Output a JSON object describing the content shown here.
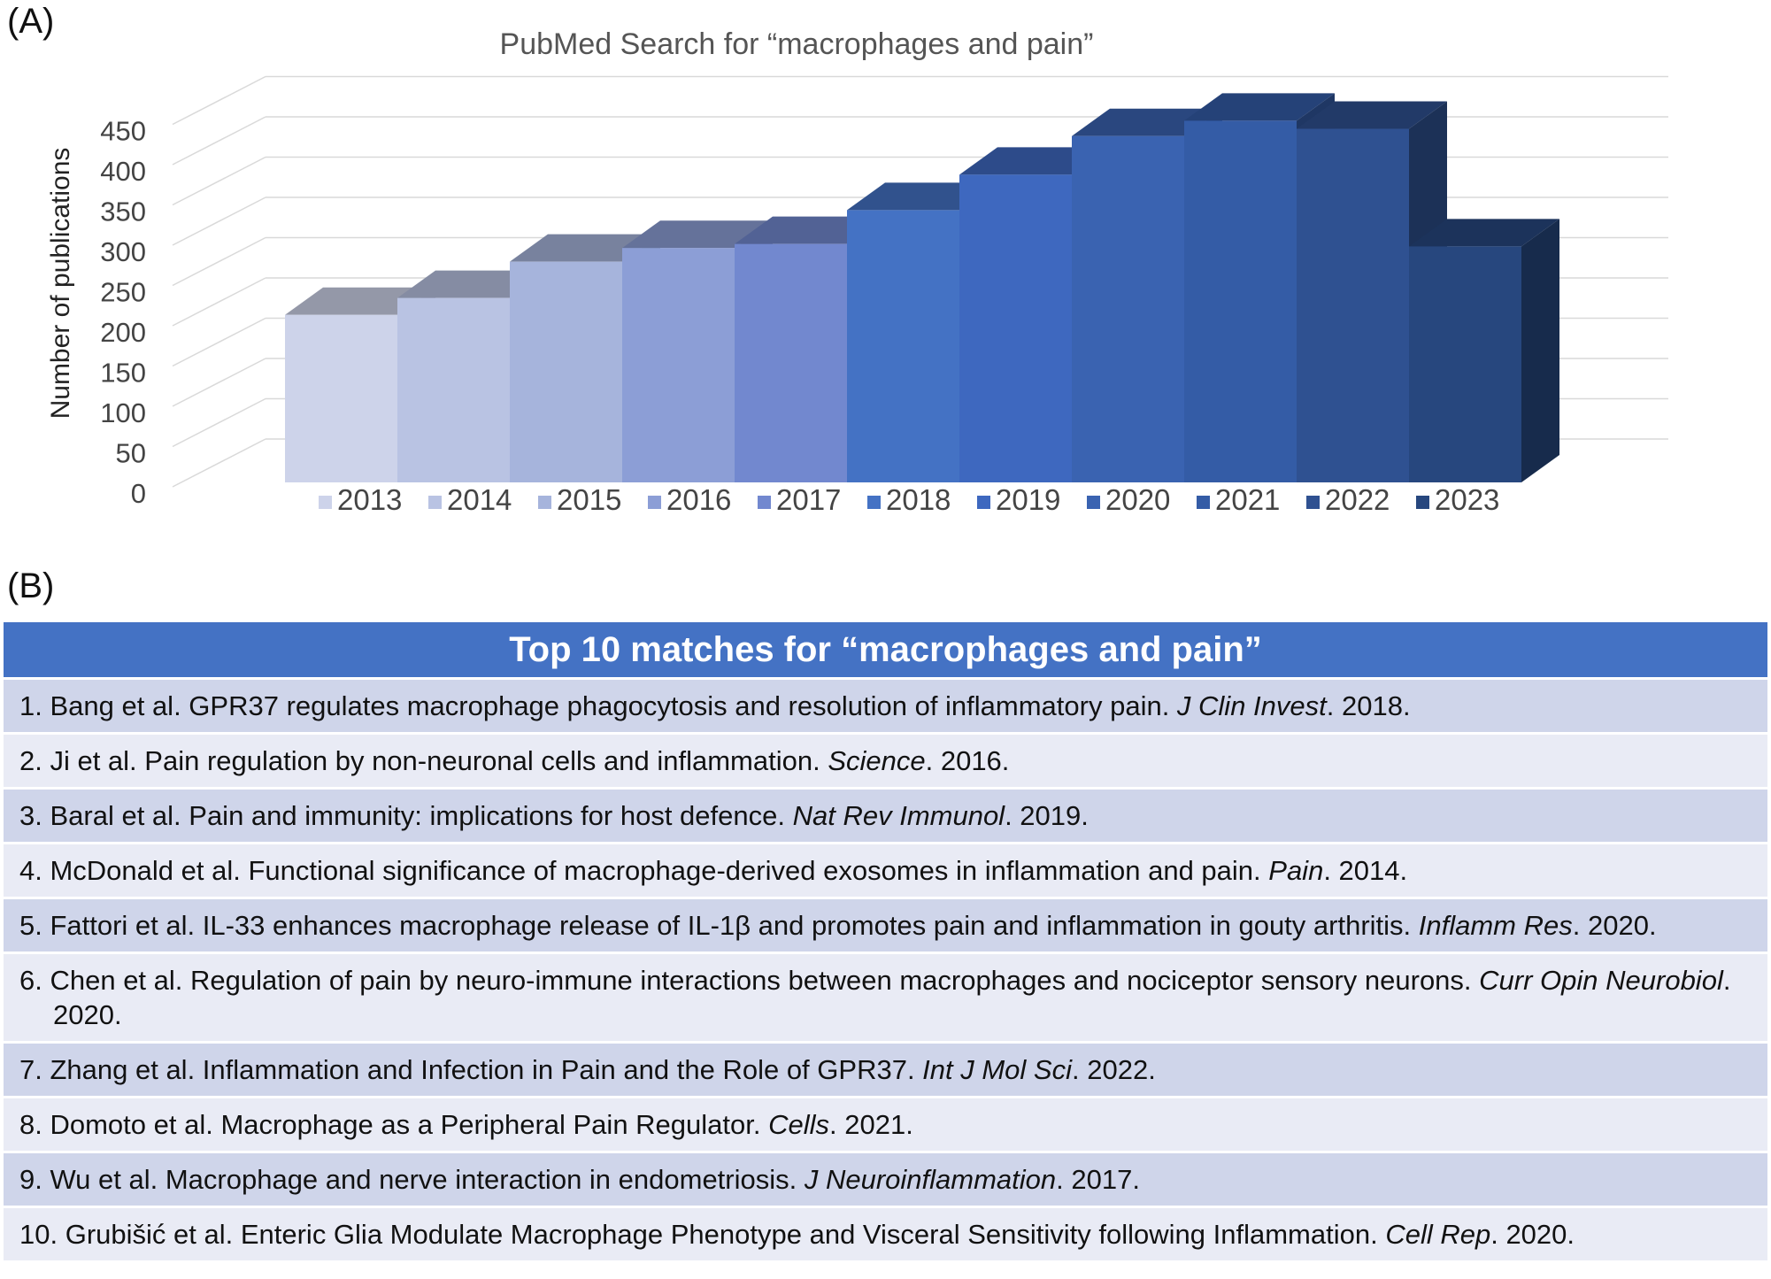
{
  "panel_a_label": "(A)",
  "panel_b_label": "(B)",
  "chart_data": {
    "type": "bar",
    "title": "PubMed Search for “macrophages and pain”",
    "xlabel": "",
    "ylabel": "Number of publications",
    "ylim": [
      0,
      450
    ],
    "yticks": [
      0,
      50,
      100,
      150,
      200,
      250,
      300,
      350,
      400,
      450
    ],
    "grid": true,
    "legend_position": "bottom",
    "categories": [
      "2013",
      "2014",
      "2015",
      "2016",
      "2017",
      "2018",
      "2019",
      "2020",
      "2021",
      "2022",
      "2023"
    ],
    "values": [
      208,
      229,
      274,
      291,
      296,
      338,
      382,
      430,
      449,
      439,
      293
    ],
    "colors": [
      "#cdd3ea",
      "#b9c3e3",
      "#a6b4dc",
      "#8c9ed6",
      "#7288cf",
      "#4472c4",
      "#3e68bf",
      "#3a63b1",
      "#345ca6",
      "#2f5191",
      "#27477e"
    ]
  },
  "table": {
    "header": "Top 10 matches for “macrophages and pain”",
    "rows": [
      {
        "pre": "1. Bang et al. GPR37 regulates macrophage phagocytosis and resolution of inflammatory pain. ",
        "journal": "J Clin Invest",
        "post": ". 2018."
      },
      {
        "pre": "2. Ji et al. Pain regulation by non-neuronal cells and inflammation. ",
        "journal": "Science",
        "post": ". 2016."
      },
      {
        "pre": "3. Baral et al. Pain and immunity: implications for host defence. ",
        "journal": "Nat Rev Immunol",
        "post": ". 2019."
      },
      {
        "pre": "4. McDonald et al. Functional significance of macrophage-derived exosomes in inflammation and pain. ",
        "journal": "Pain",
        "post": ". 2014."
      },
      {
        "pre": "5. Fattori et al. IL-33 enhances macrophage release of IL-1β and promotes pain and inflammation in gouty arthritis. ",
        "journal": "Inflamm Res",
        "post": ". 2020."
      },
      {
        "pre": "6. Chen et al. Regulation of pain by neuro-immune interactions between macrophages and nociceptor sensory neurons. ",
        "journal": "Curr Opin Neurobiol",
        "post": ". 2020."
      },
      {
        "pre": "7. Zhang et al. Inflammation and Infection in Pain and the Role of GPR37. ",
        "journal": "Int J Mol Sci",
        "post": ". 2022."
      },
      {
        "pre": "8. Domoto et al. Macrophage as a Peripheral Pain Regulator. ",
        "journal": "Cells",
        "post": ". 2021."
      },
      {
        "pre": "9. Wu et al. Macrophage and nerve interaction in endometriosis. ",
        "journal": "J Neuroinflammation",
        "post": ". 2017."
      },
      {
        "pre": "10. Grubišić et al. Enteric Glia Modulate Macrophage Phenotype and Visceral Sensitivity following Inflammation. ",
        "journal": "Cell Rep",
        "post": ". 2020."
      }
    ]
  }
}
